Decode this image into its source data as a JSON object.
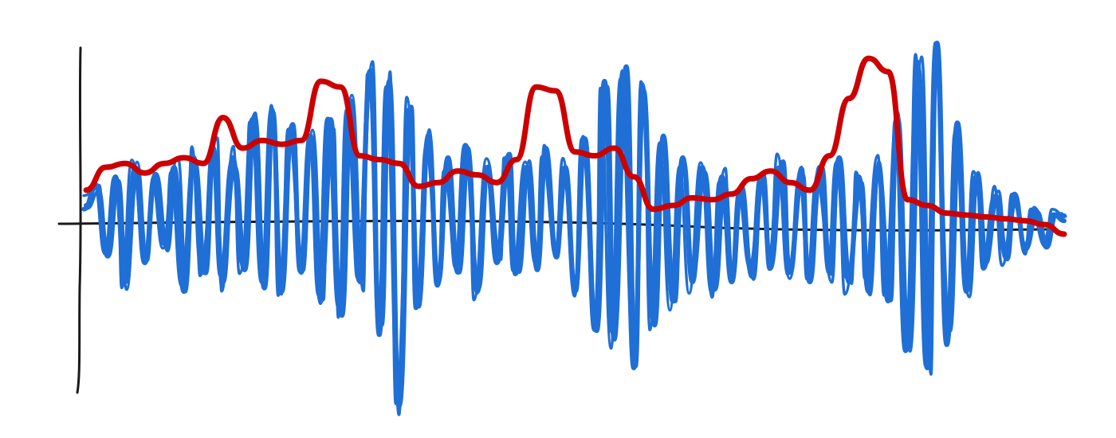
{
  "chart_data": {
    "type": "line",
    "title": "",
    "xlabel": "",
    "ylabel": "",
    "xlim": [
      0,
      100
    ],
    "ylim": [
      -1.0,
      1.0
    ],
    "grid": false,
    "legend": "none",
    "zero_line": true,
    "series": [
      {
        "role": "signal",
        "color": "#1f6fd6",
        "x": [
          0,
          1,
          2,
          3,
          4,
          5,
          6,
          7,
          8,
          9,
          10,
          11,
          12,
          13,
          14,
          15,
          16,
          17,
          18,
          19,
          20,
          21,
          22,
          23,
          24,
          25,
          26,
          27,
          28,
          29,
          30,
          31,
          32,
          33,
          34,
          35,
          36,
          37,
          38,
          39,
          40,
          41,
          42,
          43,
          44,
          45,
          46,
          47,
          48,
          49,
          50,
          51,
          52,
          53,
          54,
          55,
          56,
          57,
          58,
          59,
          60,
          61,
          62,
          63,
          64,
          65,
          66,
          67,
          68,
          69,
          70,
          71,
          72,
          73,
          74,
          75,
          76,
          77,
          78,
          79,
          80,
          81,
          82,
          83,
          84,
          85,
          86,
          87,
          88,
          89,
          90,
          91,
          92,
          93,
          94,
          95,
          96,
          97,
          98,
          99,
          100
        ],
        "y": [
          0.1,
          0.2,
          -0.15,
          0.25,
          -0.3,
          0.3,
          -0.2,
          0.25,
          -0.1,
          0.3,
          -0.35,
          0.35,
          -0.25,
          0.4,
          -0.3,
          0.35,
          -0.2,
          0.55,
          -0.3,
          0.6,
          -0.35,
          0.5,
          -0.25,
          0.45,
          -0.4,
          0.55,
          -0.45,
          0.65,
          -0.3,
          0.8,
          -0.55,
          0.75,
          -0.95,
          0.6,
          -0.4,
          0.45,
          -0.3,
          0.35,
          -0.25,
          0.4,
          -0.35,
          0.3,
          -0.2,
          0.35,
          -0.25,
          0.3,
          -0.2,
          0.4,
          -0.15,
          0.3,
          -0.35,
          0.45,
          -0.55,
          0.75,
          -0.6,
          0.8,
          -0.75,
          0.7,
          -0.5,
          0.45,
          -0.4,
          0.35,
          -0.3,
          0.3,
          -0.35,
          0.25,
          -0.3,
          0.2,
          -0.25,
          0.25,
          -0.2,
          0.3,
          -0.25,
          0.25,
          -0.3,
          0.3,
          -0.25,
          0.35,
          -0.3,
          0.25,
          -0.35,
          0.3,
          -0.4,
          0.55,
          -0.65,
          0.85,
          -0.75,
          0.95,
          -0.6,
          0.5,
          -0.35,
          0.25,
          -0.2,
          0.15,
          -0.15,
          0.12,
          -0.12,
          0.08,
          -0.08,
          0.05,
          0.02
        ]
      },
      {
        "role": "envelope",
        "color": "#cc0000",
        "x": [
          0,
          2,
          4,
          6,
          8,
          10,
          12,
          14,
          16,
          18,
          20,
          22,
          24,
          26,
          28,
          30,
          32,
          34,
          36,
          38,
          40,
          42,
          44,
          46,
          48,
          50,
          52,
          54,
          56,
          58,
          60,
          62,
          64,
          66,
          68,
          70,
          72,
          74,
          76,
          78,
          80,
          82,
          84,
          86,
          88,
          90,
          92,
          94,
          96,
          98,
          100
        ],
        "y": [
          0.18,
          0.3,
          0.32,
          0.27,
          0.32,
          0.35,
          0.32,
          0.56,
          0.4,
          0.44,
          0.42,
          0.44,
          0.75,
          0.72,
          0.36,
          0.34,
          0.32,
          0.2,
          0.22,
          0.28,
          0.26,
          0.22,
          0.34,
          0.72,
          0.7,
          0.38,
          0.36,
          0.4,
          0.25,
          0.08,
          0.1,
          0.14,
          0.13,
          0.16,
          0.24,
          0.28,
          0.22,
          0.18,
          0.36,
          0.66,
          0.87,
          0.8,
          0.13,
          0.1,
          0.06,
          0.05,
          0.04,
          0.03,
          0.02,
          0.0,
          -0.05
        ]
      }
    ]
  }
}
